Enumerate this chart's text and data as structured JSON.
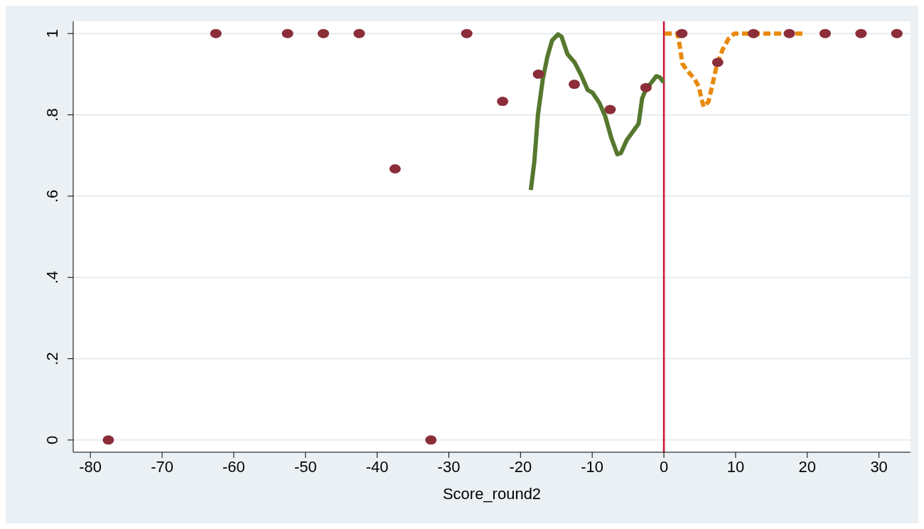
{
  "chart_data": {
    "type": "scatter",
    "xlabel": "Score_round2",
    "xlim": [
      -82.4,
      34.4
    ],
    "xticks": [
      -80,
      -70,
      -60,
      -50,
      -40,
      -30,
      -20,
      -10,
      0,
      10,
      20,
      30
    ],
    "ylim": [
      -0.03,
      1.03
    ],
    "yticks": [
      0,
      {
        "value": 0.2,
        "label": ".2"
      },
      {
        "value": 0.4,
        "label": ".4"
      },
      {
        "value": 0.6,
        "label": ".6"
      },
      {
        "value": 0.8,
        "label": ".8"
      },
      1
    ],
    "grid": "y",
    "legend": false,
    "ref_lines": [
      {
        "axis": "x",
        "value": 0,
        "color": "#c8102e"
      }
    ],
    "series": [
      {
        "color": "#8b2e3a",
        "marker": "circle",
        "x": [
          -77.5,
          -62.5,
          -52.5,
          -47.5,
          -42.5,
          -37.5,
          -32.5,
          -27.5,
          -22.5,
          -17.5,
          -12.5,
          -7.5,
          -2.5,
          2.5,
          7.5,
          12.5,
          17.5,
          22.5,
          27.5,
          32.5
        ],
        "values": [
          0,
          1,
          1,
          1,
          1,
          0.667,
          0,
          1,
          0.833,
          0.9,
          0.875,
          0.813,
          0.867,
          1,
          0.929,
          1,
          1,
          1,
          1,
          1
        ]
      },
      {
        "type": "line",
        "color": "#55782e",
        "line_style": "solid",
        "x": [
          -18.56,
          -18.07,
          -17.57,
          -16.9,
          -16.25,
          -15.6,
          -14.77,
          -14.27,
          -13.45,
          -12.46,
          -11.47,
          -10.63,
          -9.98,
          -8.99,
          -8.16,
          -7.33,
          -6.5,
          -6.0,
          -5.18,
          -4.03,
          -3.53,
          -3.04,
          -2.55,
          -1.72,
          -1.06,
          -0.56,
          -0.05
        ],
        "values": [
          0.615,
          0.686,
          0.8,
          0.887,
          0.943,
          0.983,
          0.998,
          0.992,
          0.949,
          0.929,
          0.895,
          0.861,
          0.855,
          0.829,
          0.795,
          0.743,
          0.703,
          0.706,
          0.738,
          0.766,
          0.778,
          0.84,
          0.861,
          0.88,
          0.895,
          0.892,
          0.88
        ]
      },
      {
        "type": "line",
        "color": "#e8890c",
        "line_style": "dashed",
        "x": [
          0.1,
          1.9,
          2.25,
          2.58,
          3.24,
          4.23,
          4.89,
          5.22,
          5.55,
          6.21,
          6.71,
          7.36,
          8.2,
          9.02,
          9.84,
          12,
          15,
          19.4
        ],
        "values": [
          1,
          1,
          0.966,
          0.926,
          0.909,
          0.889,
          0.869,
          0.84,
          0.82,
          0.832,
          0.869,
          0.921,
          0.961,
          0.987,
          1,
          1,
          1,
          1
        ]
      }
    ]
  }
}
